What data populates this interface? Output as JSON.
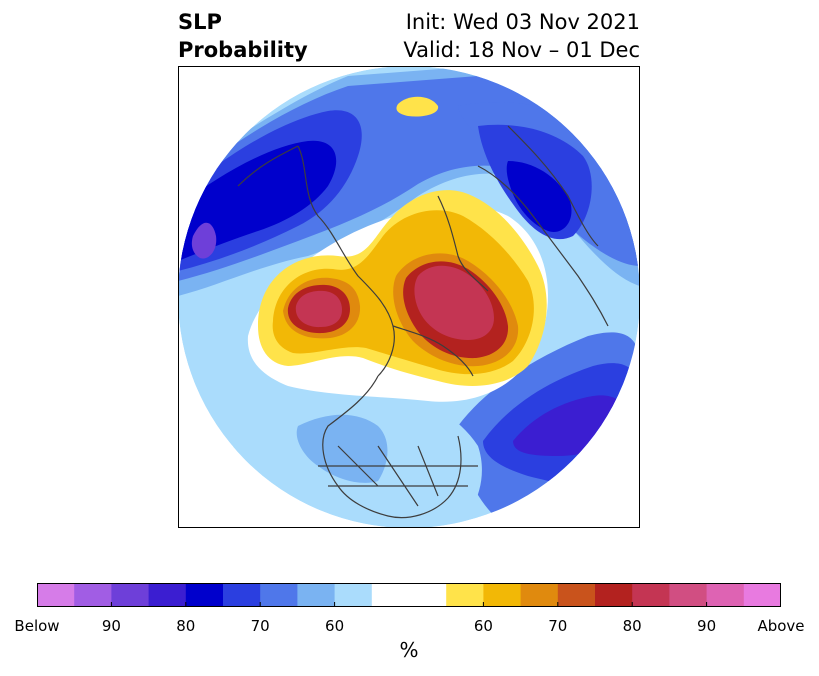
{
  "title": {
    "left_line1": "SLP",
    "left_line2": "Probability",
    "right_line1": "Init: Wed 03 Nov 2021",
    "right_line2": "Valid: 18 Nov – 01 Dec"
  },
  "colorbar": {
    "units": "%",
    "tick_labels": [
      "Below",
      "90",
      "80",
      "70",
      "60",
      "60",
      "70",
      "80",
      "90",
      "Above"
    ],
    "colors": [
      "#d67ce8",
      "#a15de4",
      "#6e3fd9",
      "#3b1ed1",
      "#0000cc",
      "#2b3fe0",
      "#4f77ea",
      "#7ab3f2",
      "#aadcfc",
      "#ffffff",
      "#ffffff",
      "#ffe34a",
      "#f2b806",
      "#e08a0e",
      "#c9531c",
      "#b3221f",
      "#c43553",
      "#d14e82",
      "#de63b3",
      "#e87ae0"
    ]
  },
  "map_colors": {
    "below_light": "#aadcfc",
    "below_mid": "#7ab3f2",
    "below_blue": "#4f77ea",
    "below_strong": "#2b3fe0",
    "below_deep": "#0000cc",
    "below_violet": "#3b1ed1",
    "below_purple": "#6e3fd9",
    "above_yellow": "#ffe34a",
    "above_gold": "#f2b806",
    "above_orange": "#e08a0e",
    "above_rust": "#c9531c",
    "above_red": "#b3221f",
    "above_crimson": "#c43553",
    "coast": "#3d3d3d"
  }
}
